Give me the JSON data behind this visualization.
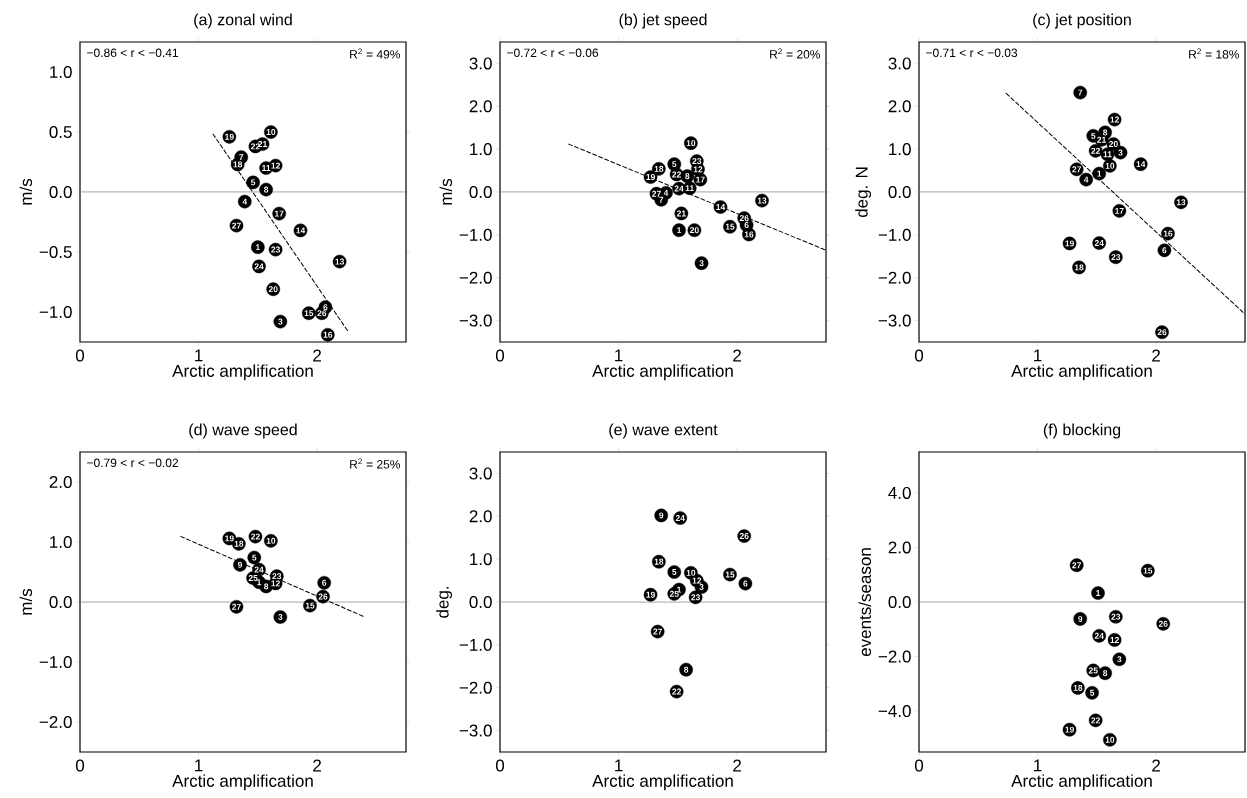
{
  "chart_data": [
    {
      "type": "scatter",
      "title": "(a) zonal wind",
      "xlabel": "Arctic amplification",
      "ylabel": "m/s",
      "marker": "circle",
      "xlim": [
        0,
        2.75
      ],
      "ylim": [
        -1.25,
        1.25
      ],
      "xticks": [
        0,
        1,
        2
      ],
      "yticks": [
        {
          "value": 1,
          "label": "1.0"
        },
        {
          "value": 0.5,
          "label": "0.5"
        },
        {
          "value": 0,
          "label": "0.0"
        },
        {
          "value": -0.5,
          "label": "−0.5"
        },
        {
          "value": -1,
          "label": "−1.0"
        }
      ],
      "ref_lines": [
        {
          "axis": "y",
          "value": 0,
          "color": "#808080"
        }
      ],
      "series": [
        {
          "color": "#000000",
          "x": [
            1.26,
            1.61,
            1.48,
            1.54,
            1.36,
            1.33,
            1.57,
            1.65,
            1.46,
            1.57,
            1.39,
            1.68,
            1.32,
            1.86,
            1.5,
            1.65,
            2.19,
            1.51,
            1.63,
            1.93,
            2.04,
            2.07,
            1.69,
            2.09
          ],
          "values": [
            0.46,
            0.5,
            0.38,
            0.4,
            0.29,
            0.23,
            0.2,
            0.22,
            0.08,
            0.02,
            -0.08,
            -0.18,
            -0.28,
            -0.32,
            -0.46,
            -0.48,
            -0.58,
            -0.62,
            -0.81,
            -1.01,
            -1.01,
            -0.96,
            -1.08,
            -1.19
          ]
        },
        {
          "type": "line",
          "color": "#000000",
          "line_style": "dashed",
          "marker": "none",
          "x": [
            1.11,
            2.26
          ],
          "values": [
            0.5,
            -1.16
          ]
        }
      ],
      "annotations": [
        "−0.86 < r < −0.41",
        "R$^{2}$ = 49%",
        {
          "text": "19",
          "x": 1.26,
          "y": 0.46
        },
        {
          "text": "10",
          "x": 1.61,
          "y": 0.5
        },
        {
          "text": "22",
          "x": 1.48,
          "y": 0.38
        },
        {
          "text": "21",
          "x": 1.54,
          "y": 0.4
        },
        {
          "text": "7",
          "x": 1.36,
          "y": 0.29
        },
        {
          "text": "18",
          "x": 1.33,
          "y": 0.23
        },
        {
          "text": "11",
          "x": 1.57,
          "y": 0.2
        },
        {
          "text": "12",
          "x": 1.65,
          "y": 0.22
        },
        {
          "text": "5",
          "x": 1.46,
          "y": 0.08
        },
        {
          "text": "8",
          "x": 1.57,
          "y": 0.02
        },
        {
          "text": "4",
          "x": 1.39,
          "y": -0.08
        },
        {
          "text": "17",
          "x": 1.68,
          "y": -0.18
        },
        {
          "text": "27",
          "x": 1.32,
          "y": -0.28
        },
        {
          "text": "14",
          "x": 1.86,
          "y": -0.32
        },
        {
          "text": "1",
          "x": 1.5,
          "y": -0.46
        },
        {
          "text": "23",
          "x": 1.65,
          "y": -0.48
        },
        {
          "text": "13",
          "x": 2.19,
          "y": -0.58
        },
        {
          "text": "24",
          "x": 1.51,
          "y": -0.62
        },
        {
          "text": "20",
          "x": 1.63,
          "y": -0.81
        },
        {
          "text": "15",
          "x": 1.93,
          "y": -1.01
        },
        {
          "text": "26",
          "x": 2.04,
          "y": -1.01
        },
        {
          "text": "6",
          "x": 2.07,
          "y": -0.96
        },
        {
          "text": "3",
          "x": 1.69,
          "y": -1.08
        },
        {
          "text": "16",
          "x": 2.09,
          "y": -1.19
        }
      ]
    },
    {
      "type": "scatter",
      "title": "(b) jet speed",
      "xlabel": "Arctic amplification",
      "ylabel": "m/s",
      "marker": "circle",
      "xlim": [
        0,
        2.75
      ],
      "ylim": [
        -3.5,
        3.5
      ],
      "xticks": [
        0,
        1,
        2
      ],
      "yticks": [
        {
          "value": 3,
          "label": "3.0"
        },
        {
          "value": 2,
          "label": "2.0"
        },
        {
          "value": 1,
          "label": "1.0"
        },
        {
          "value": 0,
          "label": "0.0"
        },
        {
          "value": -1,
          "label": "−1.0"
        },
        {
          "value": -2,
          "label": "−2.0"
        },
        {
          "value": -3,
          "label": "−3.0"
        }
      ],
      "ref_lines": [
        {
          "axis": "y",
          "value": 0,
          "color": "#808080"
        }
      ],
      "series": [
        {
          "color": "#000000",
          "x": [
            1.61,
            1.66,
            1.47,
            1.34,
            1.67,
            1.49,
            1.58,
            1.27,
            1.69,
            1.51,
            1.6,
            1.32,
            1.4,
            1.36,
            1.86,
            2.21,
            1.53,
            2.06,
            2.08,
            1.94,
            2.1,
            1.51,
            1.64,
            1.7
          ],
          "values": [
            1.14,
            0.72,
            0.65,
            0.54,
            0.53,
            0.41,
            0.37,
            0.35,
            0.29,
            0.08,
            0.09,
            -0.04,
            -0.02,
            -0.18,
            -0.35,
            -0.2,
            -0.5,
            -0.61,
            -0.77,
            -0.81,
            -0.99,
            -0.89,
            -0.89,
            -1.66
          ]
        },
        {
          "type": "line",
          "color": "#000000",
          "line_style": "dashed",
          "marker": "none",
          "x": [
            0.56,
            2.75
          ],
          "values": [
            1.14,
            -1.36
          ]
        }
      ],
      "annotations": [
        "−0.72 < r < −0.06",
        "R$^{2}$ = 20%",
        {
          "text": "10",
          "x": 1.61,
          "y": 1.14
        },
        {
          "text": "23",
          "x": 1.66,
          "y": 0.72
        },
        {
          "text": "5",
          "x": 1.47,
          "y": 0.65
        },
        {
          "text": "18",
          "x": 1.34,
          "y": 0.54
        },
        {
          "text": "12",
          "x": 1.67,
          "y": 0.53
        },
        {
          "text": "22",
          "x": 1.49,
          "y": 0.41
        },
        {
          "text": "8",
          "x": 1.58,
          "y": 0.37
        },
        {
          "text": "19",
          "x": 1.27,
          "y": 0.35
        },
        {
          "text": "17",
          "x": 1.69,
          "y": 0.29
        },
        {
          "text": "24",
          "x": 1.51,
          "y": 0.08
        },
        {
          "text": "11",
          "x": 1.6,
          "y": 0.09
        },
        {
          "text": "27",
          "x": 1.32,
          "y": -0.04
        },
        {
          "text": "4",
          "x": 1.4,
          "y": -0.02
        },
        {
          "text": "7",
          "x": 1.36,
          "y": -0.18
        },
        {
          "text": "14",
          "x": 1.86,
          "y": -0.35
        },
        {
          "text": "13",
          "x": 2.21,
          "y": -0.2
        },
        {
          "text": "21",
          "x": 1.53,
          "y": -0.5
        },
        {
          "text": "26",
          "x": 2.06,
          "y": -0.61
        },
        {
          "text": "6",
          "x": 2.08,
          "y": -0.77
        },
        {
          "text": "15",
          "x": 1.94,
          "y": -0.81
        },
        {
          "text": "16",
          "x": 2.1,
          "y": -0.99
        },
        {
          "text": "1",
          "x": 1.51,
          "y": -0.89
        },
        {
          "text": "20",
          "x": 1.64,
          "y": -0.89
        },
        {
          "text": "3",
          "x": 1.7,
          "y": -1.66
        }
      ]
    },
    {
      "type": "scatter",
      "title": "(c) jet position",
      "xlabel": "Arctic amplification",
      "ylabel": "deg. N",
      "marker": "circle",
      "xlim": [
        0,
        2.75
      ],
      "ylim": [
        -3.5,
        3.5
      ],
      "xticks": [
        0,
        1,
        2
      ],
      "yticks": [
        {
          "value": 3,
          "label": "3.0"
        },
        {
          "value": 2,
          "label": "2.0"
        },
        {
          "value": 1,
          "label": "1.0"
        },
        {
          "value": 0,
          "label": "0.0"
        },
        {
          "value": -1,
          "label": "−1.0"
        },
        {
          "value": -2,
          "label": "−2.0"
        },
        {
          "value": -3,
          "label": "−3.0"
        }
      ],
      "ref_lines": [
        {
          "axis": "y",
          "value": 0,
          "color": "#808080"
        }
      ],
      "series": [
        {
          "color": "#000000",
          "x": [
            1.36,
            1.65,
            1.57,
            1.47,
            1.54,
            1.64,
            1.49,
            1.59,
            1.7,
            1.87,
            1.61,
            1.33,
            1.52,
            1.41,
            2.21,
            1.69,
            2.1,
            2.07,
            1.27,
            1.52,
            1.66,
            1.35,
            2.05
          ],
          "values": [
            2.32,
            1.69,
            1.39,
            1.31,
            1.22,
            1.12,
            0.96,
            0.88,
            0.92,
            0.65,
            0.61,
            0.53,
            0.43,
            0.29,
            -0.24,
            -0.44,
            -0.97,
            -1.36,
            -1.2,
            -1.19,
            -1.52,
            -1.76,
            -3.27
          ]
        },
        {
          "type": "line",
          "color": "#000000",
          "line_style": "dashed",
          "marker": "none",
          "x": [
            0.72,
            2.75
          ],
          "values": [
            2.34,
            -2.85
          ]
        }
      ],
      "annotations": [
        "−0.71 < r < −0.03",
        "R$^{2}$ = 18%",
        {
          "text": "7",
          "x": 1.36,
          "y": 2.32
        },
        {
          "text": "12",
          "x": 1.65,
          "y": 1.69
        },
        {
          "text": "8",
          "x": 1.57,
          "y": 1.39
        },
        {
          "text": "5",
          "x": 1.47,
          "y": 1.31
        },
        {
          "text": "21",
          "x": 1.54,
          "y": 1.22
        },
        {
          "text": "20",
          "x": 1.64,
          "y": 1.12
        },
        {
          "text": "22",
          "x": 1.49,
          "y": 0.96
        },
        {
          "text": "11",
          "x": 1.59,
          "y": 0.88
        },
        {
          "text": "3",
          "x": 1.7,
          "y": 0.92
        },
        {
          "text": "14",
          "x": 1.87,
          "y": 0.65
        },
        {
          "text": "10",
          "x": 1.61,
          "y": 0.61
        },
        {
          "text": "27",
          "x": 1.33,
          "y": 0.53
        },
        {
          "text": "1",
          "x": 1.52,
          "y": 0.43
        },
        {
          "text": "4",
          "x": 1.41,
          "y": 0.29
        },
        {
          "text": "13",
          "x": 2.21,
          "y": -0.24
        },
        {
          "text": "17",
          "x": 1.69,
          "y": -0.44
        },
        {
          "text": "16",
          "x": 2.1,
          "y": -0.97
        },
        {
          "text": "6",
          "x": 2.07,
          "y": -1.36
        },
        {
          "text": "19",
          "x": 1.27,
          "y": -1.2
        },
        {
          "text": "24",
          "x": 1.52,
          "y": -1.19
        },
        {
          "text": "23",
          "x": 1.66,
          "y": -1.52
        },
        {
          "text": "18",
          "x": 1.35,
          "y": -1.76
        },
        {
          "text": "26",
          "x": 2.05,
          "y": -3.27
        }
      ]
    },
    {
      "type": "scatter",
      "title": "(d) wave speed",
      "xlabel": "Arctic amplification",
      "ylabel": "m/s",
      "marker": "circle",
      "xlim": [
        0,
        2.75
      ],
      "ylim": [
        -2.5,
        2.5
      ],
      "xticks": [
        0,
        1,
        2
      ],
      "yticks": [
        {
          "value": 2,
          "label": "2.0"
        },
        {
          "value": 1,
          "label": "1.0"
        },
        {
          "value": 0,
          "label": "0.0"
        },
        {
          "value": -1,
          "label": "−1.0"
        },
        {
          "value": -2,
          "label": "−2.0"
        }
      ],
      "ref_lines": [
        {
          "axis": "y",
          "value": 0,
          "color": "#808080"
        }
      ],
      "series": [
        {
          "color": "#000000",
          "x": [
            1.26,
            1.34,
            1.48,
            1.61,
            1.47,
            1.35,
            1.51,
            1.46,
            1.51,
            1.66,
            1.65,
            1.57,
            2.06,
            2.05,
            1.32,
            1.94,
            1.69
          ],
          "values": [
            1.06,
            0.97,
            1.09,
            1.02,
            0.74,
            0.62,
            0.54,
            0.4,
            0.33,
            0.43,
            0.31,
            0.26,
            0.32,
            0.09,
            -0.08,
            -0.06,
            -0.25
          ]
        },
        {
          "type": "line",
          "color": "#000000",
          "line_style": "dashed",
          "marker": "none",
          "x": [
            0.83,
            2.39
          ],
          "values": [
            1.11,
            -0.24
          ]
        }
      ],
      "annotations": [
        "−0.79 < r < −0.02",
        "R$^{2}$ = 25%",
        {
          "text": "19",
          "x": 1.26,
          "y": 1.06
        },
        {
          "text": "18",
          "x": 1.34,
          "y": 0.97
        },
        {
          "text": "22",
          "x": 1.48,
          "y": 1.09
        },
        {
          "text": "10",
          "x": 1.61,
          "y": 1.02
        },
        {
          "text": "5",
          "x": 1.47,
          "y": 0.74
        },
        {
          "text": "9",
          "x": 1.35,
          "y": 0.62
        },
        {
          "text": "24",
          "x": 1.51,
          "y": 0.54
        },
        {
          "text": "25",
          "x": 1.46,
          "y": 0.4
        },
        {
          "text": "1",
          "x": 1.51,
          "y": 0.33
        },
        {
          "text": "23",
          "x": 1.66,
          "y": 0.43
        },
        {
          "text": "12",
          "x": 1.65,
          "y": 0.31
        },
        {
          "text": "8",
          "x": 1.57,
          "y": 0.26
        },
        {
          "text": "6",
          "x": 2.06,
          "y": 0.32
        },
        {
          "text": "26",
          "x": 2.05,
          "y": 0.09
        },
        {
          "text": "27",
          "x": 1.32,
          "y": -0.08
        },
        {
          "text": "15",
          "x": 1.94,
          "y": -0.06
        },
        {
          "text": "3",
          "x": 1.69,
          "y": -0.25
        }
      ]
    },
    {
      "type": "scatter",
      "title": "(e) wave extent",
      "xlabel": "Arctic amplification",
      "ylabel": "deg.",
      "marker": "circle",
      "xlim": [
        0,
        2.75
      ],
      "ylim": [
        -3.5,
        3.5
      ],
      "xticks": [
        0,
        1,
        2
      ],
      "yticks": [
        {
          "value": 3,
          "label": "3.0"
        },
        {
          "value": 2,
          "label": "2.0"
        },
        {
          "value": 1,
          "label": "1.0"
        },
        {
          "value": 0,
          "label": "0.0"
        },
        {
          "value": -1,
          "label": "−1.0"
        },
        {
          "value": -2,
          "label": "−2.0"
        },
        {
          "value": -3,
          "label": "−3.0"
        }
      ],
      "ref_lines": [
        {
          "axis": "y",
          "value": 0,
          "color": "#808080"
        }
      ],
      "series": [
        {
          "color": "#000000",
          "x": [
            1.36,
            1.52,
            2.06,
            1.34,
            1.47,
            1.61,
            1.94,
            1.66,
            2.07,
            1.7,
            1.51,
            1.47,
            1.27,
            1.65,
            1.33,
            1.57,
            1.49
          ],
          "values": [
            2.02,
            1.96,
            1.54,
            0.94,
            0.7,
            0.68,
            0.64,
            0.5,
            0.43,
            0.35,
            0.29,
            0.19,
            0.17,
            0.11,
            -0.69,
            -1.58,
            -2.09
          ]
        }
      ],
      "annotations": [
        {
          "text": "9",
          "x": 1.36,
          "y": 2.02
        },
        {
          "text": "24",
          "x": 1.52,
          "y": 1.96
        },
        {
          "text": "26",
          "x": 2.06,
          "y": 1.54
        },
        {
          "text": "18",
          "x": 1.34,
          "y": 0.94
        },
        {
          "text": "5",
          "x": 1.47,
          "y": 0.7
        },
        {
          "text": "10",
          "x": 1.61,
          "y": 0.68
        },
        {
          "text": "15",
          "x": 1.94,
          "y": 0.64
        },
        {
          "text": "12",
          "x": 1.66,
          "y": 0.5
        },
        {
          "text": "6",
          "x": 2.07,
          "y": 0.43
        },
        {
          "text": "3",
          "x": 1.7,
          "y": 0.35
        },
        {
          "text": "1",
          "x": 1.51,
          "y": 0.29
        },
        {
          "text": "25",
          "x": 1.47,
          "y": 0.19
        },
        {
          "text": "19",
          "x": 1.27,
          "y": 0.17
        },
        {
          "text": "23",
          "x": 1.65,
          "y": 0.11
        },
        {
          "text": "27",
          "x": 1.33,
          "y": -0.69
        },
        {
          "text": "8",
          "x": 1.57,
          "y": -1.58
        },
        {
          "text": "22",
          "x": 1.49,
          "y": -2.09
        }
      ]
    },
    {
      "type": "scatter",
      "title": "(f) blocking",
      "xlabel": "Arctic amplification",
      "ylabel": "events/season",
      "marker": "circle",
      "xlim": [
        0,
        2.75
      ],
      "ylim": [
        -5.5,
        5.5
      ],
      "xticks": [
        0,
        1,
        2
      ],
      "yticks": [
        {
          "value": 4,
          "label": "4.0"
        },
        {
          "value": 2,
          "label": "2.0"
        },
        {
          "value": 0,
          "label": "0.0"
        },
        {
          "value": -2,
          "label": "−2.0"
        },
        {
          "value": -4,
          "label": "−4.0"
        }
      ],
      "ref_lines": [
        {
          "axis": "y",
          "value": 0,
          "color": "#808080"
        }
      ],
      "series": [
        {
          "color": "#000000",
          "x": [
            1.33,
            1.93,
            1.51,
            1.36,
            1.66,
            2.06,
            1.52,
            1.65,
            1.69,
            1.47,
            1.57,
            1.34,
            1.46,
            1.49,
            1.27,
            1.61
          ],
          "values": [
            1.35,
            1.15,
            0.33,
            -0.62,
            -0.54,
            -0.8,
            -1.24,
            -1.39,
            -2.1,
            -2.51,
            -2.61,
            -3.15,
            -3.33,
            -4.34,
            -4.68,
            -5.05
          ]
        }
      ],
      "annotations": [
        {
          "text": "27",
          "x": 1.33,
          "y": 1.35
        },
        {
          "text": "15",
          "x": 1.93,
          "y": 1.15
        },
        {
          "text": "1",
          "x": 1.51,
          "y": 0.33
        },
        {
          "text": "9",
          "x": 1.36,
          "y": -0.62
        },
        {
          "text": "23",
          "x": 1.66,
          "y": -0.54
        },
        {
          "text": "26",
          "x": 2.06,
          "y": -0.8
        },
        {
          "text": "24",
          "x": 1.52,
          "y": -1.24
        },
        {
          "text": "12",
          "x": 1.65,
          "y": -1.39
        },
        {
          "text": "3",
          "x": 1.69,
          "y": -2.1
        },
        {
          "text": "25",
          "x": 1.47,
          "y": -2.51
        },
        {
          "text": "8",
          "x": 1.57,
          "y": -2.61
        },
        {
          "text": "18",
          "x": 1.34,
          "y": -3.15
        },
        {
          "text": "5",
          "x": 1.46,
          "y": -3.33
        },
        {
          "text": "22",
          "x": 1.49,
          "y": -4.34
        },
        {
          "text": "19",
          "x": 1.27,
          "y": -4.68
        },
        {
          "text": "10",
          "x": 1.61,
          "y": -5.05
        }
      ]
    }
  ]
}
